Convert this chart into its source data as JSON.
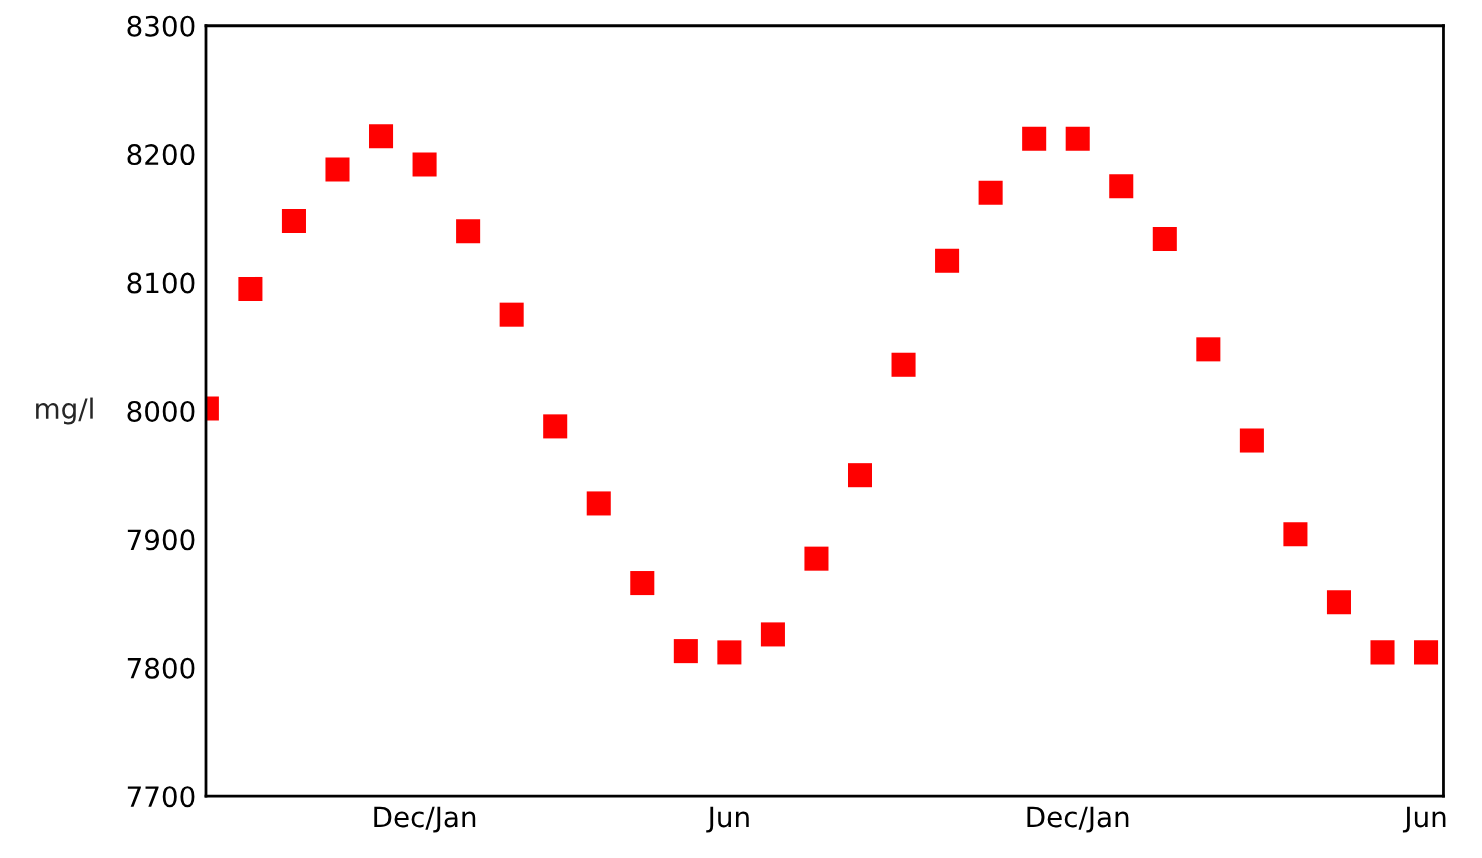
{
  "chart_data": {
    "type": "scatter",
    "ylabel": "mg/l",
    "categories": [
      null,
      null,
      null,
      null,
      null,
      "Dec/Jan",
      null,
      null,
      null,
      null,
      null,
      null,
      "Jun",
      null,
      null,
      null,
      null,
      null,
      null,
      null,
      "Dec/Jan",
      null,
      null,
      null,
      null,
      null,
      null,
      null,
      "Jun"
    ],
    "series": [
      {
        "color": "#ff0000",
        "values": [
          8002,
          8095,
          8148,
          8188,
          8214,
          8192,
          8140,
          8075,
          7988,
          7928,
          7866,
          7813,
          7812,
          7826,
          7885,
          7950,
          8036,
          8117,
          8170,
          8212,
          8212,
          8175,
          8134,
          8048,
          7977,
          7904,
          7851,
          7812,
          7812
        ]
      }
    ],
    "marker": "square",
    "ylim": [
      7700,
      8300
    ],
    "yticks": [
      7700,
      7800,
      7900,
      8000,
      8100,
      8200,
      8300
    ],
    "grid": false,
    "legend": false
  }
}
